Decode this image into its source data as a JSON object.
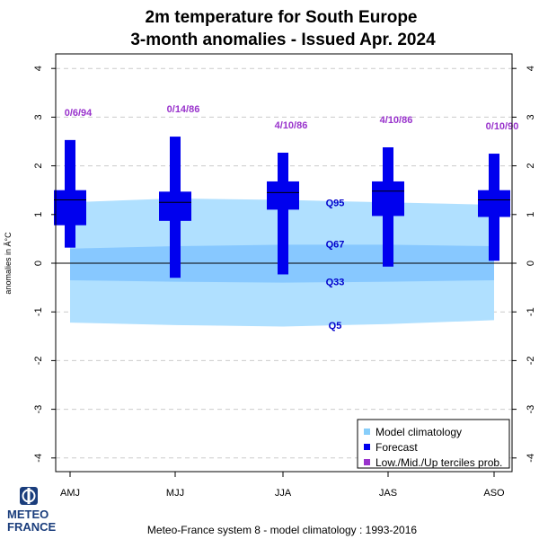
{
  "chart_data": {
    "type": "box",
    "title_line1": "2m temperature  for  South Europe",
    "title_line2": "3-month anomalies    -    Issued Apr. 2024",
    "ylabel": "anomalies in Â°C",
    "ylim": [
      -4.3,
      4.3
    ],
    "yticks": [
      -4,
      -3,
      -2,
      -1,
      0,
      1,
      2,
      3,
      4
    ],
    "grid": "dashed horizontal",
    "categories": [
      "AMJ",
      "MJJ",
      "JJA",
      "JAS",
      "ASO"
    ],
    "climatology": {
      "q5": [
        -1.22,
        -1.27,
        -1.3,
        -1.25,
        -1.17
      ],
      "q33": [
        -0.35,
        -0.38,
        -0.4,
        -0.38,
        -0.35
      ],
      "q67": [
        0.3,
        0.35,
        0.38,
        0.38,
        0.35
      ],
      "q95": [
        1.25,
        1.33,
        1.3,
        1.25,
        1.2
      ]
    },
    "quantile_labels": [
      {
        "text": "Q95",
        "y": 1.25
      },
      {
        "text": "Q67",
        "y": 0.4
      },
      {
        "text": "Q33",
        "y": -0.38
      },
      {
        "text": "Q5",
        "y": -1.27
      }
    ],
    "forecast": [
      {
        "category": "AMJ",
        "min": 0.32,
        "q25": 0.78,
        "median": 1.3,
        "q75": 1.5,
        "max": 2.53,
        "terciles": "0/6/94"
      },
      {
        "category": "MJJ",
        "min": -0.3,
        "q25": 0.87,
        "median": 1.25,
        "q75": 1.47,
        "max": 2.6,
        "terciles": "0/14/86"
      },
      {
        "category": "JJA",
        "min": -0.23,
        "q25": 1.1,
        "median": 1.45,
        "q75": 1.68,
        "max": 2.27,
        "terciles": "4/10/86"
      },
      {
        "category": "JAS",
        "min": -0.07,
        "q25": 0.97,
        "median": 1.48,
        "q75": 1.68,
        "max": 2.38,
        "terciles": "4/10/86"
      },
      {
        "category": "ASO",
        "min": 0.05,
        "q25": 0.95,
        "median": 1.3,
        "q75": 1.5,
        "max": 2.25,
        "terciles": "0/10/90"
      }
    ],
    "legend": {
      "placement": "bottom-right",
      "items": [
        {
          "label": "Model climatology",
          "color": "#87cefa"
        },
        {
          "label": "Forecast",
          "color": "#0000ee"
        },
        {
          "label": "Low./Mid./Up terciles prob.",
          "color": "#9933cc"
        }
      ]
    },
    "colors": {
      "outer_band": "#b0e0ff",
      "inner_band": "#87c8ff",
      "forecast": "#0000ee",
      "terciles": "#9933cc",
      "quantile_labels": "#0000cc"
    }
  },
  "footer": "Meteo-France system 8  -  model climatology : 1993-2016",
  "logo": {
    "line1": "METEO",
    "line2": "FRANCE"
  }
}
